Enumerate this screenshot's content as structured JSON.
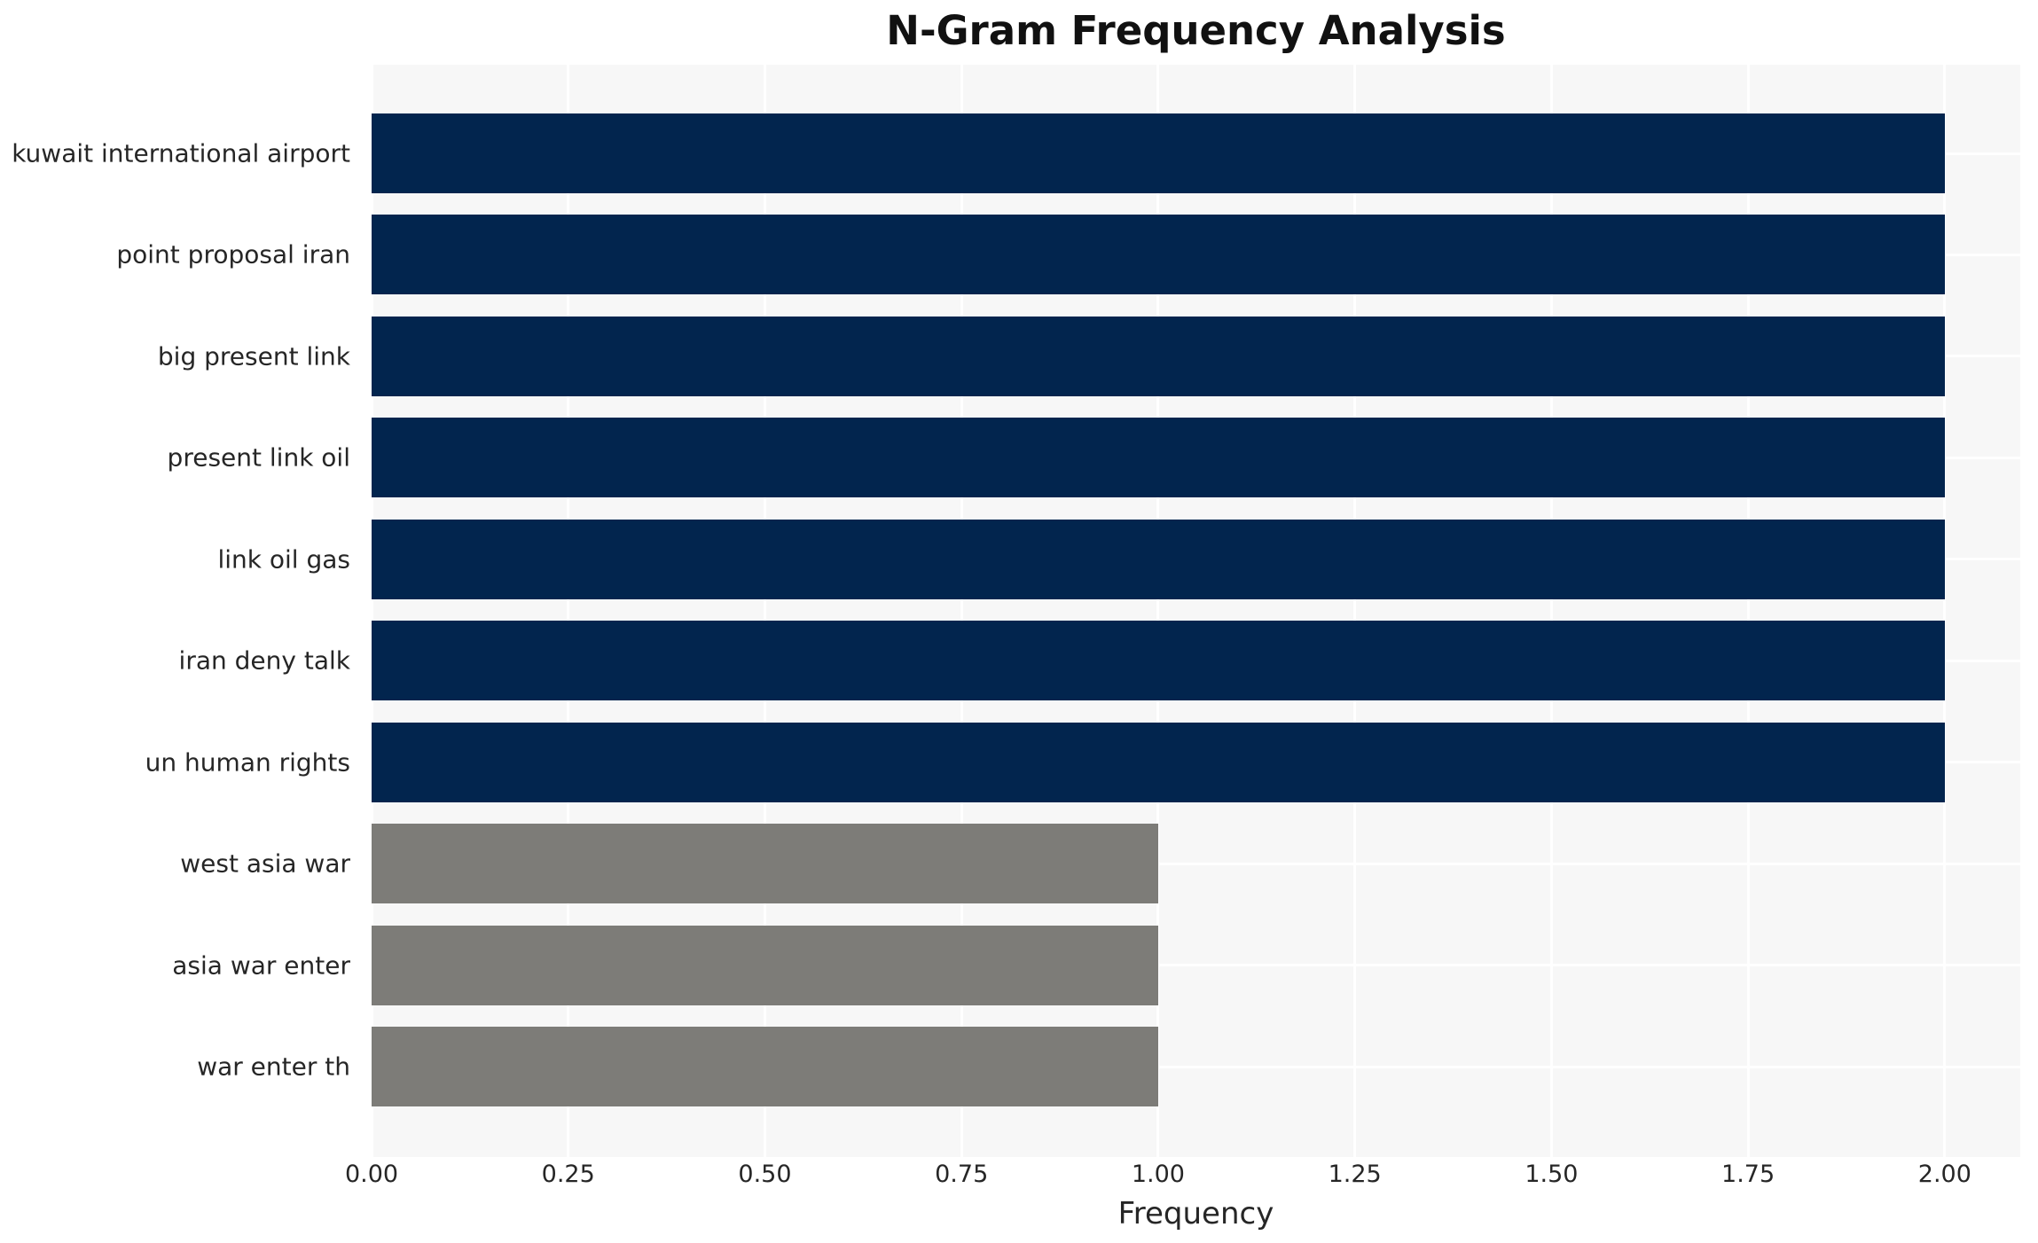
{
  "chart_data": {
    "type": "bar",
    "orientation": "horizontal",
    "title": "N-Gram Frequency Analysis",
    "xlabel": "Frequency",
    "ylabel": "",
    "categories": [
      "kuwait international airport",
      "point proposal iran",
      "big present link",
      "present link oil",
      "link oil gas",
      "iran deny talk",
      "un human rights",
      "west asia war",
      "asia war enter",
      "war enter th"
    ],
    "values": [
      2,
      2,
      2,
      2,
      2,
      2,
      2,
      1,
      1,
      1
    ],
    "bar_colors": [
      "#02254e",
      "#02254e",
      "#02254e",
      "#02254e",
      "#02254e",
      "#02254e",
      "#02254e",
      "#7d7c78",
      "#7d7c78",
      "#7d7c78"
    ],
    "xlim": [
      0,
      2.096
    ],
    "xticks": [
      0,
      0.25,
      0.5,
      0.75,
      1.0,
      1.25,
      1.5,
      1.75,
      2.0
    ],
    "xtick_labels": [
      "0.00",
      "0.25",
      "0.50",
      "0.75",
      "1.00",
      "1.25",
      "1.50",
      "1.75",
      "2.00"
    ],
    "grid": true,
    "legend": false,
    "colors": {
      "plot_background": "#f7f7f7",
      "figure_background": "#ffffff",
      "grid_line": "#ffffff",
      "tick_text": "#262626",
      "title_text": "#111111",
      "bar_frequent": "#02254e",
      "bar_infrequent": "#7d7c78"
    }
  }
}
